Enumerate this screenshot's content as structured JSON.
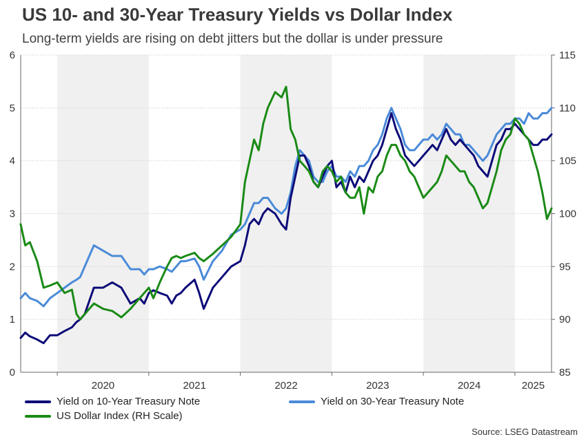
{
  "title": "US 10- and 30-Year Treasury Yields vs Dollar Index",
  "subtitle": "Long-term yields are rising on debt jitters but the dollar is under pressure",
  "source": "Source: LSEG Datastream",
  "chart_data": {
    "type": "line",
    "title": "US 10- and 30-Year Treasury Yields vs Dollar Index",
    "subtitle": "Long-term yields are rising on debt jitters but the dollar is under pressure",
    "x_range": [
      2019.6,
      2025.4
    ],
    "x_ticks": [
      "2020",
      "2021",
      "2022",
      "2023",
      "2024",
      "2025"
    ],
    "y_left": {
      "range": [
        0,
        6
      ],
      "ticks": [
        "0",
        "1",
        "2",
        "3",
        "4",
        "5",
        "6"
      ]
    },
    "y_right": {
      "range": [
        85,
        115
      ],
      "ticks": [
        "85",
        "90",
        "95",
        "100",
        "105",
        "110",
        "115"
      ]
    },
    "grid": true,
    "shaded_years": [
      2020,
      2022,
      2024
    ],
    "legend_position": "bottom",
    "series": [
      {
        "name": "Yield on 10-Year Treasury Note",
        "axis": "left",
        "color": "#0d0a78",
        "x": [
          2019.6,
          2019.65,
          2019.7,
          2019.78,
          2019.85,
          2019.92,
          2020.0,
          2020.08,
          2020.16,
          2020.21,
          2020.25,
          2020.3,
          2020.4,
          2020.5,
          2020.6,
          2020.7,
          2020.8,
          2020.9,
          2020.95,
          2021.0,
          2021.05,
          2021.12,
          2021.2,
          2021.25,
          2021.3,
          2021.35,
          2021.4,
          2021.5,
          2021.55,
          2021.6,
          2021.7,
          2021.8,
          2021.9,
          2022.0,
          2022.05,
          2022.1,
          2022.15,
          2022.2,
          2022.25,
          2022.3,
          2022.38,
          2022.45,
          2022.5,
          2022.55,
          2022.6,
          2022.65,
          2022.7,
          2022.75,
          2022.8,
          2022.85,
          2022.9,
          2022.95,
          2023.0,
          2023.05,
          2023.1,
          2023.15,
          2023.2,
          2023.25,
          2023.3,
          2023.35,
          2023.4,
          2023.45,
          2023.5,
          2023.55,
          2023.6,
          2023.65,
          2023.7,
          2023.75,
          2023.8,
          2023.85,
          2023.9,
          2023.95,
          2024.0,
          2024.05,
          2024.1,
          2024.15,
          2024.2,
          2024.25,
          2024.3,
          2024.35,
          2024.4,
          2024.45,
          2024.5,
          2024.55,
          2024.6,
          2024.65,
          2024.7,
          2024.75,
          2024.8,
          2024.85,
          2024.9,
          2024.95,
          2025.0,
          2025.05,
          2025.1,
          2025.15,
          2025.2,
          2025.25,
          2025.3,
          2025.35,
          2025.4
        ],
        "values": [
          0.65,
          0.75,
          0.68,
          0.62,
          0.55,
          0.7,
          0.7,
          0.78,
          0.85,
          0.95,
          1.0,
          1.1,
          1.6,
          1.6,
          1.7,
          1.6,
          1.3,
          1.4,
          1.3,
          1.5,
          1.55,
          1.5,
          1.45,
          1.3,
          1.45,
          1.5,
          1.6,
          1.75,
          1.5,
          1.2,
          1.6,
          1.8,
          2.0,
          2.1,
          2.4,
          2.8,
          2.9,
          2.8,
          3.0,
          3.1,
          3.0,
          2.8,
          2.7,
          3.3,
          3.7,
          4.1,
          4.1,
          3.9,
          3.6,
          3.5,
          3.7,
          3.9,
          4.0,
          3.5,
          3.6,
          3.4,
          3.7,
          3.5,
          3.7,
          3.6,
          3.8,
          4.0,
          4.1,
          4.3,
          4.6,
          4.9,
          4.6,
          4.4,
          4.1,
          4.0,
          3.9,
          4.0,
          4.1,
          4.2,
          4.3,
          4.2,
          4.4,
          4.6,
          4.4,
          4.3,
          4.4,
          4.3,
          4.2,
          4.1,
          3.9,
          3.8,
          3.7,
          4.0,
          4.3,
          4.4,
          4.6,
          4.6,
          4.7,
          4.6,
          4.5,
          4.4,
          4.3,
          4.3,
          4.4,
          4.4,
          4.5
        ]
      },
      {
        "name": "Yield on 30-Year Treasury Note",
        "axis": "left",
        "color": "#4a8ad8",
        "x": [
          2019.6,
          2019.65,
          2019.7,
          2019.78,
          2019.85,
          2019.92,
          2020.0,
          2020.08,
          2020.16,
          2020.21,
          2020.25,
          2020.3,
          2020.4,
          2020.5,
          2020.6,
          2020.7,
          2020.8,
          2020.9,
          2020.95,
          2021.0,
          2021.05,
          2021.12,
          2021.2,
          2021.25,
          2021.3,
          2021.35,
          2021.4,
          2021.5,
          2021.55,
          2021.6,
          2021.7,
          2021.8,
          2021.9,
          2022.0,
          2022.05,
          2022.1,
          2022.15,
          2022.2,
          2022.25,
          2022.3,
          2022.38,
          2022.45,
          2022.5,
          2022.55,
          2022.6,
          2022.65,
          2022.7,
          2022.75,
          2022.8,
          2022.85,
          2022.9,
          2022.95,
          2023.0,
          2023.05,
          2023.1,
          2023.15,
          2023.2,
          2023.25,
          2023.3,
          2023.35,
          2023.4,
          2023.45,
          2023.5,
          2023.55,
          2023.6,
          2023.65,
          2023.7,
          2023.75,
          2023.8,
          2023.85,
          2023.9,
          2023.95,
          2024.0,
          2024.05,
          2024.1,
          2024.15,
          2024.2,
          2024.25,
          2024.3,
          2024.35,
          2024.4,
          2024.45,
          2024.5,
          2024.55,
          2024.6,
          2024.65,
          2024.7,
          2024.75,
          2024.8,
          2024.85,
          2024.9,
          2024.95,
          2025.0,
          2025.05,
          2025.1,
          2025.15,
          2025.2,
          2025.25,
          2025.3,
          2025.35,
          2025.4
        ],
        "values": [
          1.4,
          1.5,
          1.4,
          1.35,
          1.25,
          1.4,
          1.5,
          1.6,
          1.7,
          1.75,
          1.8,
          2.0,
          2.4,
          2.3,
          2.2,
          2.2,
          1.95,
          1.95,
          1.85,
          1.95,
          1.95,
          2.0,
          1.95,
          1.9,
          2.0,
          2.1,
          2.1,
          2.15,
          2.0,
          1.75,
          2.1,
          2.3,
          2.6,
          2.7,
          2.8,
          3.0,
          3.2,
          3.2,
          3.3,
          3.3,
          3.1,
          3.0,
          3.1,
          3.4,
          3.9,
          4.2,
          4.1,
          4.0,
          3.7,
          3.6,
          3.6,
          3.8,
          3.9,
          3.7,
          3.7,
          3.6,
          3.8,
          3.7,
          3.9,
          3.9,
          4.0,
          4.2,
          4.3,
          4.5,
          4.8,
          5.0,
          4.8,
          4.6,
          4.3,
          4.2,
          4.2,
          4.3,
          4.4,
          4.4,
          4.5,
          4.4,
          4.5,
          4.7,
          4.6,
          4.5,
          4.5,
          4.3,
          4.3,
          4.2,
          4.1,
          4.0,
          4.1,
          4.3,
          4.5,
          4.6,
          4.7,
          4.7,
          4.8,
          4.8,
          4.7,
          4.9,
          4.8,
          4.8,
          4.9,
          4.9,
          5.0
        ]
      },
      {
        "name": "US Dollar Index (RH Scale)",
        "axis": "right",
        "color": "#1a8a16",
        "x": [
          2019.6,
          2019.65,
          2019.7,
          2019.78,
          2019.85,
          2019.92,
          2020.0,
          2020.08,
          2020.16,
          2020.21,
          2020.25,
          2020.3,
          2020.4,
          2020.5,
          2020.6,
          2020.7,
          2020.8,
          2020.9,
          2020.95,
          2021.0,
          2021.05,
          2021.12,
          2021.2,
          2021.25,
          2021.3,
          2021.35,
          2021.4,
          2021.5,
          2021.55,
          2021.6,
          2021.7,
          2021.8,
          2021.9,
          2022.0,
          2022.05,
          2022.1,
          2022.15,
          2022.2,
          2022.25,
          2022.3,
          2022.38,
          2022.45,
          2022.5,
          2022.55,
          2022.6,
          2022.65,
          2022.7,
          2022.75,
          2022.8,
          2022.85,
          2022.9,
          2022.95,
          2023.0,
          2023.05,
          2023.1,
          2023.15,
          2023.2,
          2023.25,
          2023.3,
          2023.35,
          2023.4,
          2023.45,
          2023.5,
          2023.55,
          2023.6,
          2023.65,
          2023.7,
          2023.75,
          2023.8,
          2023.85,
          2023.9,
          2023.95,
          2024.0,
          2024.05,
          2024.1,
          2024.15,
          2024.2,
          2024.25,
          2024.3,
          2024.35,
          2024.4,
          2024.45,
          2024.5,
          2024.55,
          2024.6,
          2024.65,
          2024.7,
          2024.75,
          2024.8,
          2024.85,
          2024.9,
          2024.95,
          2025.0,
          2025.05,
          2025.1,
          2025.15,
          2025.2,
          2025.25,
          2025.3,
          2025.35,
          2025.4
        ],
        "values": [
          99.0,
          97.0,
          97.3,
          95.5,
          93.0,
          93.2,
          93.5,
          92.5,
          92.8,
          90.5,
          90.0,
          90.5,
          91.5,
          91.0,
          90.8,
          90.2,
          91.0,
          92.0,
          92.5,
          93.0,
          92.0,
          93.5,
          95.0,
          95.8,
          96.0,
          95.8,
          96.0,
          96.3,
          95.8,
          95.5,
          96.2,
          97.0,
          97.8,
          99.0,
          103.0,
          105.0,
          107.0,
          106.0,
          108.5,
          110.0,
          111.5,
          111.0,
          112.0,
          108.0,
          107.0,
          105.0,
          104.5,
          104.0,
          103.0,
          102.5,
          104.0,
          104.5,
          104.0,
          103.0,
          103.5,
          102.0,
          101.5,
          101.5,
          102.5,
          100.0,
          102.5,
          102.0,
          103.5,
          104.0,
          105.5,
          106.5,
          106.5,
          105.5,
          105.0,
          104.0,
          103.5,
          102.5,
          101.5,
          102.0,
          102.5,
          103.0,
          104.0,
          105.5,
          105.0,
          104.5,
          104.0,
          104.0,
          103.0,
          102.5,
          101.5,
          100.5,
          101.0,
          102.5,
          104.0,
          106.0,
          107.0,
          107.5,
          109.0,
          108.5,
          107.5,
          107.0,
          105.5,
          104.0,
          102.0,
          99.5,
          100.5
        ]
      }
    ]
  }
}
